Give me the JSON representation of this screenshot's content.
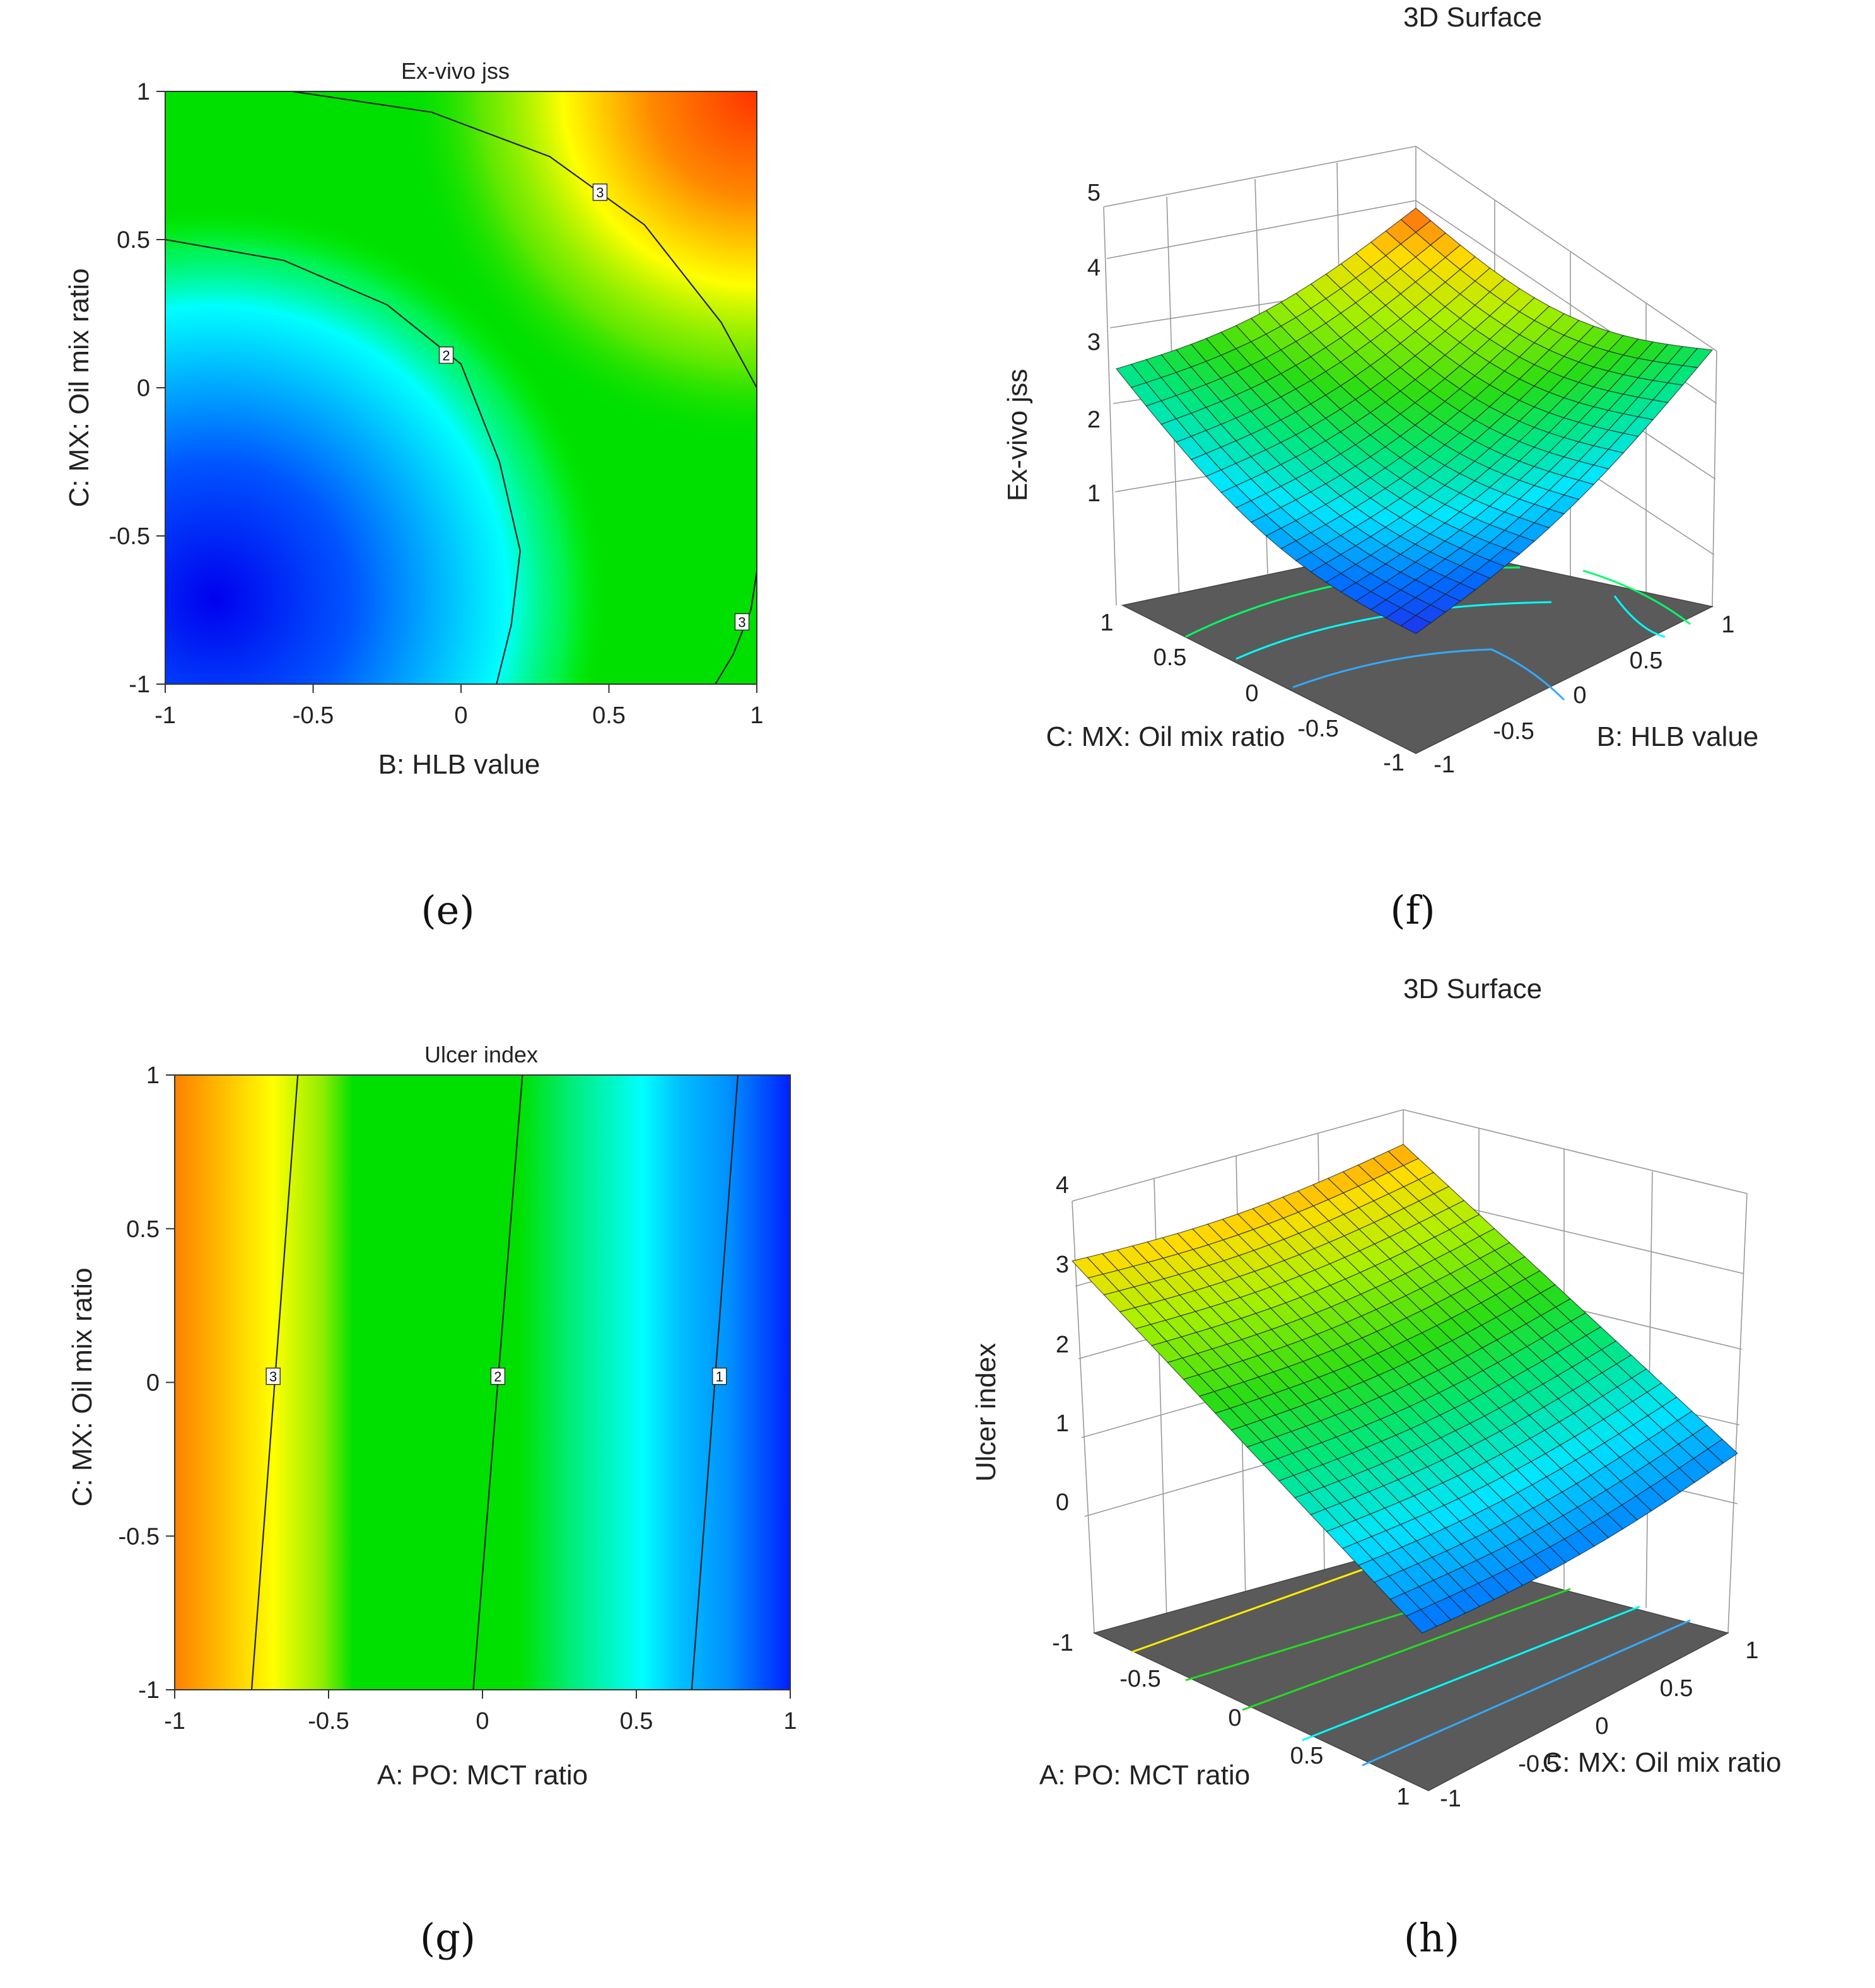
{
  "panels": {
    "e": "(e)",
    "f": "(f)",
    "g": "(g)",
    "h": "(h)"
  },
  "chart_data": [
    {
      "id": "e",
      "type": "heatmap",
      "title": "Ex-vivo jss",
      "xlabel": "B: HLB value",
      "ylabel": "C: MX: Oil mix ratio",
      "xlim": [
        -1,
        1
      ],
      "ylim": [
        -1,
        1
      ],
      "xticks": [
        "-1",
        "-0.5",
        "0",
        "0.5",
        "1"
      ],
      "yticks": [
        "-1",
        "-0.5",
        "0",
        "0.5",
        "1"
      ],
      "contours": [
        {
          "label": "2",
          "points": [
            [
              -1,
              0.5
            ],
            [
              -0.6,
              0.43
            ],
            [
              -0.25,
              0.28
            ],
            [
              0,
              0.08
            ],
            [
              0.13,
              -0.25
            ],
            [
              0.2,
              -0.55
            ],
            [
              0.17,
              -0.8
            ],
            [
              0.12,
              -1
            ]
          ]
        },
        {
          "label": "3",
          "points": [
            [
              -0.57,
              1
            ],
            [
              -0.1,
              0.93
            ],
            [
              0.3,
              0.78
            ],
            [
              0.62,
              0.55
            ],
            [
              0.88,
              0.22
            ],
            [
              1,
              0
            ]
          ]
        },
        {
          "label": "3",
          "points": [
            [
              0.86,
              -1
            ],
            [
              0.92,
              -0.9
            ],
            [
              0.98,
              -0.75
            ],
            [
              1,
              -0.62
            ]
          ]
        }
      ],
      "contour_labels": [
        {
          "text": "2",
          "x": -0.05,
          "y": 0.11
        },
        {
          "text": "3",
          "x": 0.47,
          "y": 0.66
        },
        {
          "text": "3",
          "x": 0.95,
          "y": -0.79
        }
      ]
    },
    {
      "id": "f",
      "type": "surface",
      "title": "3D Surface",
      "zlabel": "Ex-vivo jss",
      "xlabel": "B: HLB value",
      "ylabel": "C: MX: Oil mix ratio",
      "zticks": [
        "1",
        "2",
        "3",
        "4",
        "5"
      ],
      "xticks": [
        "-1",
        "-0.5",
        "0",
        "0.5",
        "1"
      ],
      "yticks": [
        "-1",
        "-0.5",
        "0",
        "0.5",
        "1"
      ],
      "corner_values": {
        "front": 0.3,
        "left": 2.6,
        "right": 2.9,
        "back": 4.8
      }
    },
    {
      "id": "g",
      "type": "heatmap",
      "title": "Ulcer index",
      "xlabel": "A: PO: MCT ratio",
      "ylabel": "C: MX: Oil mix ratio",
      "xlim": [
        -1,
        1
      ],
      "ylim": [
        -1,
        1
      ],
      "xticks": [
        "-1",
        "-0.5",
        "0",
        "0.5",
        "1"
      ],
      "yticks": [
        "-1",
        "-0.5",
        "0",
        "0.5",
        "1"
      ],
      "contours": [
        {
          "label": "3",
          "points": [
            [
              -0.75,
              -1
            ],
            [
              -0.6,
              1
            ]
          ]
        },
        {
          "label": "2",
          "points": [
            [
              -0.03,
              -1
            ],
            [
              0.13,
              1
            ]
          ]
        },
        {
          "label": "1",
          "points": [
            [
              0.68,
              -1
            ],
            [
              0.83,
              1
            ]
          ]
        }
      ],
      "contour_labels": [
        {
          "text": "3",
          "x": -0.68,
          "y": 0.02
        },
        {
          "text": "2",
          "x": 0.05,
          "y": 0.02
        },
        {
          "text": "1",
          "x": 0.77,
          "y": 0.02
        }
      ]
    },
    {
      "id": "h",
      "type": "surface",
      "title": "3D Surface",
      "zlabel": "Ulcer index",
      "xlabel": "A: PO: MCT ratio",
      "ylabel": "C: MX: Oil mix ratio",
      "zticks": [
        "0",
        "1",
        "2",
        "3",
        "4"
      ],
      "xticks": [
        "-1",
        "-0.5",
        "0",
        "0.5",
        "1"
      ],
      "yticks": [
        "-1",
        "-0.5",
        "0",
        "0.5",
        "1"
      ],
      "corner_values": {
        "left": 3.1,
        "back": 3.6,
        "right": 0.2,
        "front": -0.2
      }
    }
  ]
}
